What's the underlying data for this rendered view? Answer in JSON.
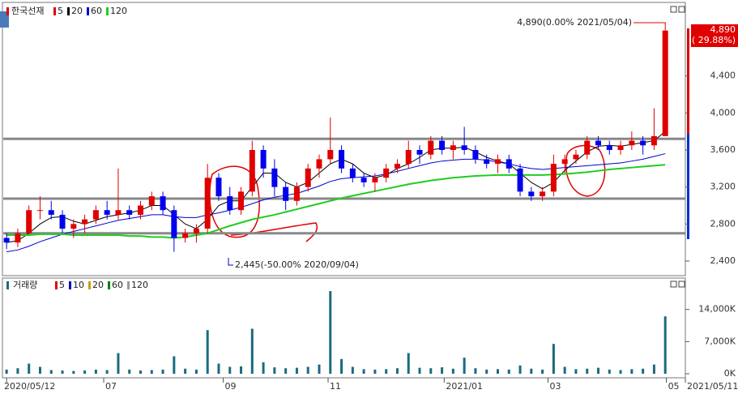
{
  "chart_data": {
    "type": "candlestick",
    "title": "한국선재",
    "legend": [
      {
        "name": "5",
        "color": "#e00000"
      },
      {
        "name": "20",
        "color": "#000000"
      },
      {
        "name": "60",
        "color": "#0000cc"
      },
      {
        "name": "120",
        "color": "#22cc22"
      }
    ],
    "up_color": "#e00000",
    "down_color": "#0000ee",
    "ohlc": [
      [
        2650,
        2700,
        2530,
        2600
      ],
      [
        2600,
        2750,
        2550,
        2700
      ],
      [
        2700,
        3000,
        2700,
        2950
      ],
      [
        2950,
        3100,
        2850,
        2950
      ],
      [
        2950,
        3050,
        2850,
        2900
      ],
      [
        2900,
        2950,
        2700,
        2750
      ],
      [
        2750,
        2850,
        2650,
        2800
      ],
      [
        2800,
        2900,
        2700,
        2850
      ],
      [
        2850,
        3000,
        2800,
        2950
      ],
      [
        2950,
        3050,
        2850,
        2900
      ],
      [
        2900,
        3400,
        2850,
        2950
      ],
      [
        2950,
        3000,
        2850,
        2900
      ],
      [
        2900,
        3050,
        2850,
        3000
      ],
      [
        3000,
        3150,
        2950,
        3100
      ],
      [
        3100,
        3150,
        2900,
        2950
      ],
      [
        2950,
        3000,
        2500,
        2650
      ],
      [
        2650,
        2750,
        2600,
        2700
      ],
      [
        2700,
        2800,
        2600,
        2750
      ],
      [
        2750,
        3450,
        2700,
        3300
      ],
      [
        3300,
        3350,
        3050,
        3100
      ],
      [
        3100,
        3200,
        2900,
        2950
      ],
      [
        2950,
        3200,
        2900,
        3150
      ],
      [
        3150,
        3700,
        3100,
        3600
      ],
      [
        3600,
        3650,
        3300,
        3400
      ],
      [
        3400,
        3500,
        3100,
        3200
      ],
      [
        3200,
        3250,
        2950,
        3050
      ],
      [
        3050,
        3250,
        3000,
        3200
      ],
      [
        3200,
        3450,
        3150,
        3400
      ],
      [
        3400,
        3550,
        3300,
        3500
      ],
      [
        3500,
        3950,
        3450,
        3600
      ],
      [
        3600,
        3650,
        3350,
        3400
      ],
      [
        3400,
        3450,
        3250,
        3300
      ],
      [
        3300,
        3350,
        3200,
        3250
      ],
      [
        3250,
        3350,
        3150,
        3300
      ],
      [
        3300,
        3450,
        3250,
        3400
      ],
      [
        3400,
        3500,
        3350,
        3450
      ],
      [
        3450,
        3700,
        3400,
        3600
      ],
      [
        3600,
        3650,
        3450,
        3550
      ],
      [
        3550,
        3750,
        3500,
        3700
      ],
      [
        3700,
        3750,
        3550,
        3600
      ],
      [
        3600,
        3700,
        3500,
        3650
      ],
      [
        3650,
        3850,
        3550,
        3600
      ],
      [
        3600,
        3650,
        3450,
        3500
      ],
      [
        3500,
        3550,
        3400,
        3450
      ],
      [
        3450,
        3550,
        3350,
        3500
      ],
      [
        3500,
        3550,
        3350,
        3400
      ],
      [
        3400,
        3450,
        3100,
        3150
      ],
      [
        3150,
        3200,
        3050,
        3100
      ],
      [
        3100,
        3200,
        3050,
        3150
      ],
      [
        3150,
        3550,
        3100,
        3450
      ],
      [
        3450,
        3550,
        3350,
        3500
      ],
      [
        3500,
        3600,
        3450,
        3550
      ],
      [
        3550,
        3750,
        3500,
        3700
      ],
      [
        3700,
        3750,
        3600,
        3650
      ],
      [
        3650,
        3700,
        3550,
        3600
      ],
      [
        3600,
        3700,
        3550,
        3650
      ],
      [
        3650,
        3800,
        3600,
        3700
      ],
      [
        3700,
        3750,
        3550,
        3650
      ],
      [
        3650,
        4050,
        3600,
        3750
      ],
      [
        3750,
        4890,
        3750,
        4890
      ]
    ],
    "series": [
      {
        "name": "20",
        "color": "#000000",
        "values": [
          2600,
          2620,
          2700,
          2800,
          2870,
          2880,
          2830,
          2800,
          2840,
          2880,
          2900,
          2920,
          2950,
          3000,
          3000,
          2900,
          2800,
          2750,
          2850,
          3000,
          3050,
          3050,
          3200,
          3350,
          3350,
          3250,
          3200,
          3250,
          3350,
          3450,
          3500,
          3450,
          3350,
          3300,
          3330,
          3400,
          3450,
          3520,
          3600,
          3620,
          3620,
          3630,
          3580,
          3520,
          3480,
          3450,
          3350,
          3250,
          3180,
          3250,
          3380,
          3480,
          3580,
          3640,
          3650,
          3640,
          3660,
          3680,
          3700,
          3800
        ]
      },
      {
        "name": "60",
        "color": "#0000cc",
        "values": [
          2500,
          2520,
          2560,
          2610,
          2650,
          2690,
          2720,
          2750,
          2780,
          2810,
          2840,
          2860,
          2880,
          2900,
          2900,
          2880,
          2870,
          2870,
          2900,
          2920,
          2950,
          2980,
          3020,
          3060,
          3090,
          3110,
          3130,
          3170,
          3210,
          3260,
          3290,
          3300,
          3310,
          3320,
          3340,
          3370,
          3400,
          3430,
          3460,
          3480,
          3490,
          3500,
          3500,
          3490,
          3470,
          3450,
          3420,
          3400,
          3390,
          3400,
          3410,
          3420,
          3430,
          3440,
          3450,
          3460,
          3480,
          3500,
          3530,
          3560
        ]
      },
      {
        "name": "120",
        "color": "#22cc22",
        "values": [
          2680,
          2680,
          2680,
          2690,
          2690,
          2690,
          2680,
          2680,
          2680,
          2680,
          2680,
          2670,
          2670,
          2660,
          2660,
          2650,
          2660,
          2680,
          2700,
          2740,
          2780,
          2815,
          2850,
          2875,
          2900,
          2930,
          2960,
          2990,
          3020,
          3050,
          3080,
          3105,
          3130,
          3155,
          3180,
          3205,
          3230,
          3250,
          3270,
          3285,
          3300,
          3310,
          3320,
          3325,
          3330,
          3330,
          3330,
          3330,
          3330,
          3335,
          3340,
          3350,
          3360,
          3375,
          3390,
          3400,
          3410,
          3420,
          3430,
          3440
        ]
      }
    ],
    "support_lines": [
      3720,
      3075,
      2700
    ],
    "ylim": [
      2260,
      5150
    ],
    "yticks": [
      {
        "value": 2400,
        "label": "2,400"
      },
      {
        "value": 2800,
        "label": "2,800"
      },
      {
        "value": 3200,
        "label": "3,200"
      },
      {
        "value": 3600,
        "label": "3,600"
      },
      {
        "value": 4000,
        "label": "4,000"
      },
      {
        "value": 4400,
        "label": "4,400"
      }
    ],
    "xlim": [
      -0.3,
      60.8
    ],
    "xticks": [
      {
        "value": 0,
        "label": "2020/05/12"
      },
      {
        "value": 8.7,
        "label": "07"
      },
      {
        "value": 19.4,
        "label": "09"
      },
      {
        "value": 28.8,
        "label": "11"
      },
      {
        "value": 39.2,
        "label": "2021/01"
      },
      {
        "value": 48.5,
        "label": "03"
      },
      {
        "value": 59.1,
        "label": "05"
      },
      {
        "value": 60.8,
        "label": "2021/05/11"
      }
    ],
    "max_annotation": "4,890(0.00% 2021/05/04)",
    "min_annotation": "2,445(-50.00% 2020/09/04)",
    "last_price_label": "4,890",
    "last_change_label": "( 29.88%)",
    "volume": {
      "title": "거래량",
      "color": "#1a6a80",
      "legend": [
        {
          "name": "5",
          "color": "#e00000"
        },
        {
          "name": "10",
          "color": "#0000cc"
        },
        {
          "name": "20",
          "color": "#c8a000"
        },
        {
          "name": "60",
          "color": "#008000"
        },
        {
          "name": "120",
          "color": "#999999"
        }
      ],
      "values": [
        900,
        1200,
        2200,
        1500,
        800,
        700,
        600,
        700,
        900,
        800,
        4500,
        900,
        700,
        800,
        900,
        3800,
        1100,
        900,
        9500,
        2200,
        1500,
        1600,
        9800,
        2500,
        1400,
        1200,
        1300,
        1500,
        2000,
        18000,
        3200,
        1500,
        1000,
        900,
        1000,
        1200,
        4500,
        1300,
        1200,
        1400,
        1100,
        3500,
        1200,
        900,
        1000,
        900,
        1800,
        1100,
        900,
        6500,
        1500,
        1000,
        1100,
        1300,
        900,
        800,
        1000,
        1100,
        2000,
        12500
      ],
      "ylim": [
        0,
        19600
      ],
      "yticks": [
        {
          "value": 0,
          "label": "0K"
        },
        {
          "value": 7000,
          "label": "7,000K"
        },
        {
          "value": 14000,
          "label": "14,000K"
        }
      ]
    }
  }
}
